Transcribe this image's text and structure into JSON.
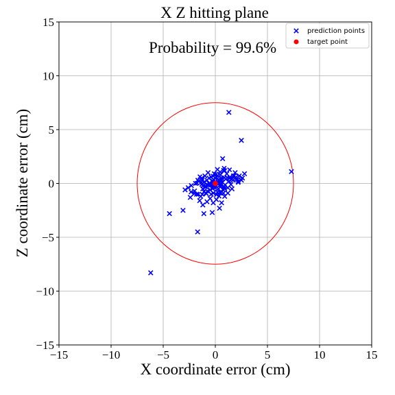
{
  "chart_data": {
    "type": "scatter",
    "title": "X Z hitting plane",
    "annotation": "Probability = 99.6%",
    "xlabel": "X coordinate error (cm)",
    "ylabel": "Z coordinate error (cm)",
    "xlim": [
      -15,
      15
    ],
    "ylim": [
      -15,
      15
    ],
    "xticks": [
      -15,
      -10,
      -5,
      0,
      5,
      10,
      15
    ],
    "yticks": [
      -15,
      -10,
      -5,
      0,
      5,
      10,
      15
    ],
    "xtick_labels": [
      "−15",
      "−10",
      "−5",
      "0",
      "5",
      "10",
      "15"
    ],
    "ytick_labels": [
      "−15",
      "−10",
      "−5",
      "0",
      "5",
      "10",
      "15"
    ],
    "grid": true,
    "legend_placement": "top-right",
    "circle": {
      "center": [
        0,
        0
      ],
      "radius": 7.5,
      "color": "#ff0000"
    },
    "series": [
      {
        "name": "prediction points",
        "marker": "x",
        "color": "#0000ff",
        "points": [
          [
            1.3,
            6.6
          ],
          [
            2.5,
            4.0
          ],
          [
            0.7,
            2.3
          ],
          [
            7.3,
            1.1
          ],
          [
            -6.2,
            -8.3
          ],
          [
            -1.7,
            -4.5
          ],
          [
            -4.4,
            -2.8
          ],
          [
            -3.1,
            -2.5
          ],
          [
            -1.1,
            -2.8
          ],
          [
            -0.3,
            -2.7
          ],
          [
            0.4,
            -2.3
          ],
          [
            -2.4,
            -1.3
          ],
          [
            -2.9,
            -0.6
          ],
          [
            -2.6,
            -0.4
          ],
          [
            -2.3,
            -0.2
          ],
          [
            -2.0,
            -0.7
          ],
          [
            -1.8,
            -1.0
          ],
          [
            -1.5,
            -1.6
          ],
          [
            -1.2,
            -2.0
          ],
          [
            -0.8,
            -1.7
          ],
          [
            -0.5,
            -1.4
          ],
          [
            -0.2,
            -1.8
          ],
          [
            0.1,
            -1.5
          ],
          [
            0.6,
            -1.8
          ],
          [
            0.9,
            -1.2
          ],
          [
            1.2,
            -0.9
          ],
          [
            1.6,
            -0.5
          ],
          [
            -1.6,
            0.2
          ],
          [
            -1.3,
            0.5
          ],
          [
            -1.0,
            0.7
          ],
          [
            -0.7,
            1.0
          ],
          [
            -0.4,
            0.6
          ],
          [
            -0.1,
            0.9
          ],
          [
            0.2,
            1.3
          ],
          [
            0.5,
            0.8
          ],
          [
            0.8,
            1.2
          ],
          [
            1.1,
            0.9
          ],
          [
            1.4,
            0.6
          ],
          [
            1.8,
            0.7
          ],
          [
            2.0,
            0.4
          ],
          [
            2.2,
            0.2
          ],
          [
            2.5,
            0.3
          ],
          [
            2.8,
            0.9
          ],
          [
            2.6,
            0.5
          ],
          [
            1.9,
            1.0
          ],
          [
            1.0,
            0.4
          ],
          [
            0.3,
            0.3
          ],
          [
            -0.3,
            0.2
          ],
          [
            -0.6,
            0.0
          ],
          [
            -0.9,
            -0.3
          ],
          [
            -1.2,
            -0.5
          ],
          [
            -0.5,
            -0.6
          ],
          [
            0.0,
            -0.4
          ],
          [
            0.4,
            -0.2
          ],
          [
            0.7,
            0.1
          ],
          [
            1.3,
            0.2
          ],
          [
            1.5,
            -0.1
          ],
          [
            0.2,
            -0.8
          ],
          [
            -0.2,
            -0.9
          ],
          [
            -0.8,
            0.3
          ],
          [
            -1.9,
            0.0
          ],
          [
            -0.4,
            -1.0
          ],
          [
            0.5,
            -0.9
          ],
          [
            0.9,
            -0.5
          ],
          [
            1.7,
            0.3
          ],
          [
            -1.4,
            -1.2
          ],
          [
            -0.9,
            -0.9
          ],
          [
            0.1,
            0.6
          ],
          [
            0.6,
            0.5
          ],
          [
            -0.1,
            -0.2
          ],
          [
            0.3,
            -0.5
          ],
          [
            -1.1,
            0.1
          ],
          [
            -0.6,
            0.5
          ],
          [
            0.8,
            -0.3
          ],
          [
            1.2,
            -0.4
          ],
          [
            2.3,
            0.7
          ]
        ]
      },
      {
        "name": "target point",
        "marker": "o",
        "color": "#ff0000",
        "points": [
          [
            0,
            0
          ]
        ]
      }
    ]
  }
}
